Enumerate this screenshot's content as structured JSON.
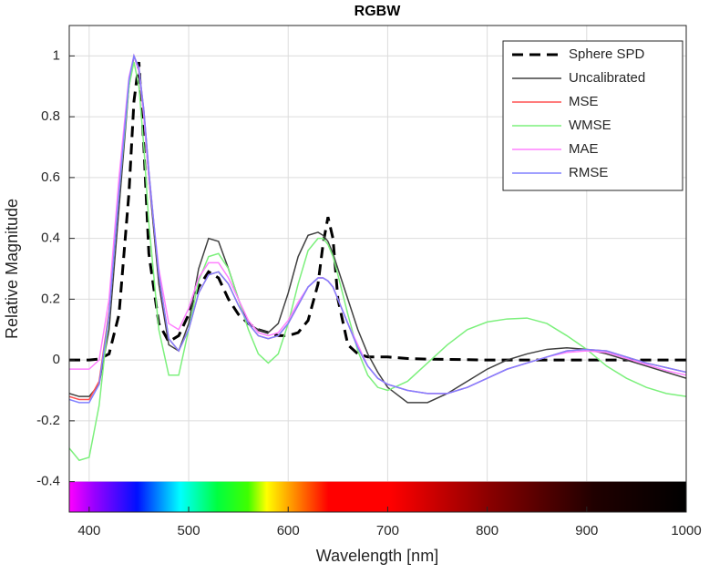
{
  "chart_data": {
    "type": "line",
    "title": "RGBW",
    "x_label": "Wavelength [nm]",
    "y_label": "Relative Magnitude",
    "x": [
      380,
      390,
      400,
      410,
      420,
      430,
      440,
      445,
      450,
      455,
      460,
      470,
      480,
      490,
      500,
      510,
      520,
      530,
      540,
      550,
      560,
      570,
      580,
      590,
      600,
      610,
      620,
      630,
      635,
      640,
      645,
      650,
      660,
      670,
      680,
      690,
      700,
      720,
      740,
      760,
      780,
      800,
      820,
      840,
      860,
      880,
      900,
      920,
      940,
      960,
      980,
      1000
    ],
    "xlim": [
      380,
      1000
    ],
    "xticks": [
      400,
      500,
      600,
      700,
      800,
      900,
      1000
    ],
    "ylim": [
      -0.5,
      1.1
    ],
    "yticks": [
      -0.4,
      -0.2,
      0,
      0.2,
      0.4,
      0.6,
      0.8,
      1
    ],
    "grid": true,
    "legend": "top-right",
    "series": [
      {
        "name": "Sphere SPD",
        "color": "#000000",
        "dashed": true,
        "values": [
          0,
          0,
          0,
          0.003,
          0.02,
          0.15,
          0.55,
          0.85,
          0.98,
          0.7,
          0.35,
          0.12,
          0.06,
          0.08,
          0.15,
          0.24,
          0.29,
          0.27,
          0.2,
          0.15,
          0.12,
          0.1,
          0.09,
          0.08,
          0.08,
          0.09,
          0.13,
          0.25,
          0.38,
          0.47,
          0.4,
          0.2,
          0.05,
          0.02,
          0.01,
          0.01,
          0.01,
          0.005,
          0.003,
          0.002,
          0.001,
          0,
          0,
          0,
          0,
          0,
          0,
          0,
          0,
          0,
          0,
          0
        ]
      },
      {
        "name": "Uncalibrated",
        "color": "#404040",
        "values": [
          -0.11,
          -0.12,
          -0.12,
          -0.08,
          0.1,
          0.5,
          0.9,
          1.0,
          0.95,
          0.8,
          0.6,
          0.25,
          0.05,
          0.03,
          0.12,
          0.3,
          0.4,
          0.39,
          0.3,
          0.2,
          0.12,
          0.1,
          0.09,
          0.12,
          0.22,
          0.34,
          0.41,
          0.42,
          0.41,
          0.39,
          0.35,
          0.3,
          0.2,
          0.1,
          0.02,
          -0.04,
          -0.09,
          -0.14,
          -0.14,
          -0.11,
          -0.07,
          -0.03,
          0.0,
          0.02,
          0.035,
          0.04,
          0.035,
          0.02,
          0.0,
          -0.02,
          -0.04,
          -0.06
        ]
      },
      {
        "name": "MSE",
        "color": "#ff5050",
        "values": [
          -0.12,
          -0.13,
          -0.13,
          -0.07,
          0.16,
          0.56,
          0.92,
          1.0,
          0.96,
          0.82,
          0.62,
          0.28,
          0.07,
          0.03,
          0.1,
          0.22,
          0.28,
          0.29,
          0.25,
          0.18,
          0.12,
          0.08,
          0.07,
          0.08,
          0.12,
          0.18,
          0.24,
          0.27,
          0.27,
          0.26,
          0.24,
          0.2,
          0.12,
          0.04,
          -0.02,
          -0.06,
          -0.08,
          -0.1,
          -0.11,
          -0.11,
          -0.09,
          -0.06,
          -0.03,
          -0.01,
          0.01,
          0.03,
          0.035,
          0.03,
          0.01,
          -0.01,
          -0.025,
          -0.04
        ]
      },
      {
        "name": "WMSE",
        "color": "#7cf07c",
        "values": [
          -0.29,
          -0.33,
          -0.32,
          -0.15,
          0.15,
          0.55,
          0.9,
          0.98,
          0.9,
          0.7,
          0.45,
          0.1,
          -0.05,
          -0.05,
          0.1,
          0.26,
          0.34,
          0.35,
          0.3,
          0.2,
          0.1,
          0.02,
          -0.01,
          0.02,
          0.12,
          0.25,
          0.36,
          0.4,
          0.4,
          0.38,
          0.34,
          0.28,
          0.15,
          0.03,
          -0.05,
          -0.09,
          -0.1,
          -0.07,
          -0.01,
          0.05,
          0.1,
          0.125,
          0.135,
          0.138,
          0.12,
          0.08,
          0.035,
          -0.02,
          -0.06,
          -0.09,
          -0.11,
          -0.12
        ]
      },
      {
        "name": "MAE",
        "color": "#ff80ff",
        "values": [
          -0.03,
          -0.03,
          -0.03,
          0.0,
          0.2,
          0.6,
          0.93,
          1.0,
          0.95,
          0.8,
          0.6,
          0.3,
          0.12,
          0.1,
          0.17,
          0.27,
          0.32,
          0.32,
          0.27,
          0.2,
          0.13,
          0.09,
          0.08,
          0.09,
          0.13,
          0.19,
          0.24,
          0.27,
          0.27,
          0.26,
          0.24,
          0.2,
          0.12,
          0.05,
          -0.02,
          -0.06,
          -0.08,
          -0.1,
          -0.11,
          -0.11,
          -0.09,
          -0.06,
          -0.03,
          -0.01,
          0.01,
          0.025,
          0.03,
          0.025,
          0.005,
          -0.015,
          -0.035,
          -0.05
        ]
      },
      {
        "name": "RMSE",
        "color": "#8080ff",
        "values": [
          -0.13,
          -0.14,
          -0.14,
          -0.08,
          0.15,
          0.55,
          0.92,
          1.0,
          0.96,
          0.82,
          0.62,
          0.28,
          0.07,
          0.03,
          0.1,
          0.22,
          0.28,
          0.29,
          0.25,
          0.18,
          0.12,
          0.08,
          0.07,
          0.08,
          0.12,
          0.18,
          0.24,
          0.27,
          0.27,
          0.26,
          0.24,
          0.2,
          0.12,
          0.04,
          -0.02,
          -0.06,
          -0.08,
          -0.1,
          -0.11,
          -0.11,
          -0.09,
          -0.06,
          -0.03,
          -0.01,
          0.01,
          0.03,
          0.035,
          0.03,
          0.01,
          -0.01,
          -0.025,
          -0.04
        ]
      }
    ]
  }
}
